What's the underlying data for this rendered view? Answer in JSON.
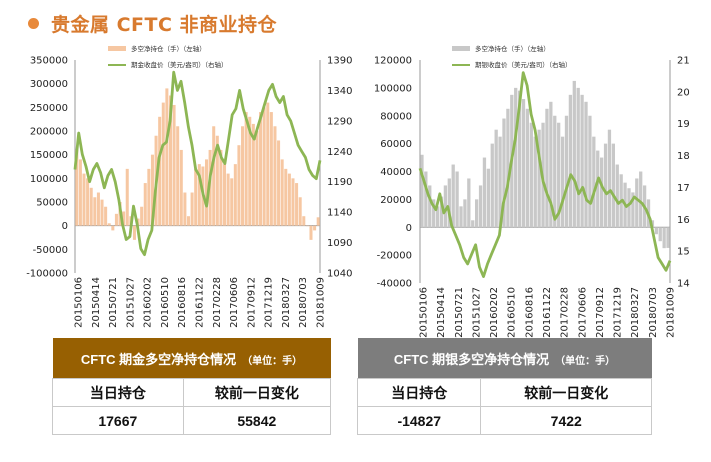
{
  "page": {
    "title": "贵金属 CFTC 非商业持仓"
  },
  "chart_data": [
    {
      "type": "bar+line",
      "legend": [
        "多空净持仓（手）（左轴）",
        "期金收盘价（美元/盎司）（右轴）"
      ],
      "left_axis": {
        "ylim": [
          -100000,
          350000
        ],
        "ticks": [
          -100000,
          -50000,
          0,
          50000,
          100000,
          150000,
          200000,
          250000,
          300000,
          350000
        ]
      },
      "right_axis": {
        "ylim": [
          1040,
          1390
        ],
        "ticks": [
          1040,
          1090,
          1140,
          1190,
          1240,
          1290,
          1340,
          1390
        ]
      },
      "x_ticks": [
        "20150106",
        "20150414",
        "20150721",
        "20151027",
        "20160202",
        "20160510",
        "20160816",
        "20161122",
        "20170228",
        "20170606",
        "20170912",
        "20171219",
        "20180327",
        "20180703",
        "20181009"
      ],
      "series": [
        {
          "name": "多空净持仓（手）（左轴）",
          "axis": "left",
          "color": "#f6c7a2",
          "values": [
            160000,
            140000,
            110000,
            100000,
            80000,
            60000,
            70000,
            55000,
            40000,
            5000,
            -10000,
            25000,
            50000,
            30000,
            120000,
            20000,
            -30000,
            15000,
            40000,
            90000,
            120000,
            150000,
            190000,
            230000,
            260000,
            290000,
            275000,
            255000,
            210000,
            160000,
            70000,
            20000,
            70000,
            120000,
            130000,
            125000,
            140000,
            160000,
            210000,
            190000,
            160000,
            130000,
            110000,
            100000,
            130000,
            170000,
            210000,
            240000,
            230000,
            215000,
            200000,
            240000,
            250000,
            260000,
            240000,
            210000,
            180000,
            140000,
            120000,
            110000,
            100000,
            90000,
            60000,
            20000,
            0,
            -30000,
            -10000,
            17667
          ]
        },
        {
          "name": "期金收盘价（美元/盎司）（右轴）",
          "axis": "right",
          "color": "#8db654",
          "values": [
            1210,
            1270,
            1235,
            1215,
            1190,
            1210,
            1220,
            1205,
            1180,
            1200,
            1210,
            1190,
            1160,
            1120,
            1095,
            1100,
            1150,
            1120,
            1080,
            1070,
            1095,
            1110,
            1175,
            1230,
            1250,
            1255,
            1290,
            1370,
            1340,
            1355,
            1320,
            1280,
            1250,
            1210,
            1200,
            1170,
            1150,
            1200,
            1230,
            1250,
            1230,
            1220,
            1260,
            1300,
            1310,
            1340,
            1310,
            1290,
            1270,
            1260,
            1280,
            1300,
            1320,
            1340,
            1350,
            1330,
            1320,
            1330,
            1300,
            1290,
            1270,
            1250,
            1240,
            1230,
            1210,
            1200,
            1195,
            1225
          ]
        }
      ]
    },
    {
      "type": "bar+line",
      "legend": [
        "多空净持仓（手）（左轴）",
        "期银收盘价（美元/盎司）（右轴）"
      ],
      "left_axis": {
        "ylim": [
          -40000,
          120000
        ],
        "ticks": [
          -40000,
          -20000,
          0,
          20000,
          40000,
          60000,
          80000,
          100000,
          120000
        ]
      },
      "right_axis": {
        "ylim": [
          14,
          21
        ],
        "ticks": [
          14,
          15,
          16,
          17,
          18,
          19,
          20,
          21
        ]
      },
      "x_ticks": [
        "20150106",
        "20150414",
        "20150721",
        "20151027",
        "20160202",
        "20160510",
        "20160816",
        "20161122",
        "20170228",
        "20170606",
        "20170912",
        "20171219",
        "20180327",
        "20180703",
        "20181009"
      ],
      "series": [
        {
          "name": "多空净持仓（手）（左轴）",
          "axis": "left",
          "color": "#c8c8c8",
          "values": [
            52000,
            40000,
            30000,
            20000,
            15000,
            22000,
            30000,
            35000,
            45000,
            40000,
            15000,
            20000,
            35000,
            5000,
            20000,
            30000,
            50000,
            42000,
            60000,
            70000,
            65000,
            78000,
            85000,
            95000,
            100000,
            98000,
            92000,
            85000,
            75000,
            65000,
            70000,
            75000,
            85000,
            90000,
            80000,
            75000,
            65000,
            80000,
            95000,
            105000,
            100000,
            95000,
            90000,
            80000,
            65000,
            55000,
            50000,
            60000,
            70000,
            60000,
            45000,
            38000,
            32000,
            28000,
            25000,
            35000,
            40000,
            30000,
            20000,
            5000,
            -5000,
            -10000,
            -15000,
            -14827
          ]
        },
        {
          "name": "期银收盘价（美元/盎司）（右轴）",
          "axis": "right",
          "color": "#8db654",
          "values": [
            17.6,
            17.2,
            16.8,
            16.5,
            16.3,
            16.8,
            16.2,
            16.4,
            15.8,
            15.5,
            15.2,
            14.8,
            14.6,
            14.9,
            15.2,
            14.5,
            14.2,
            14.6,
            14.9,
            15.2,
            15.5,
            16.5,
            17.0,
            17.8,
            18.5,
            19.5,
            20.6,
            20.2,
            19.3,
            18.8,
            18.0,
            17.2,
            16.8,
            16.5,
            16.0,
            16.2,
            16.6,
            17.0,
            17.4,
            17.2,
            16.8,
            17.0,
            16.6,
            16.5,
            16.9,
            17.3,
            17.0,
            16.8,
            16.9,
            16.7,
            16.5,
            16.6,
            16.4,
            16.5,
            16.7,
            16.6,
            16.5,
            16.3,
            16.0,
            15.4,
            14.8,
            14.6,
            14.4,
            14.7
          ]
        }
      ]
    }
  ],
  "tables": [
    {
      "caption": "CFTC 期金多空净持仓情况",
      "unit": "（单位：手）",
      "header_color": "#976002",
      "headers": [
        "当日持仓",
        "较前一日变化"
      ],
      "values": [
        "17667",
        "55842"
      ]
    },
    {
      "caption": "CFTC 期银多空净持仓情况",
      "unit": "（单位：手）",
      "header_color": "#7d7d7d",
      "headers": [
        "当日持仓",
        "较前一日变化"
      ],
      "values": [
        "-14827",
        "7422"
      ]
    }
  ]
}
